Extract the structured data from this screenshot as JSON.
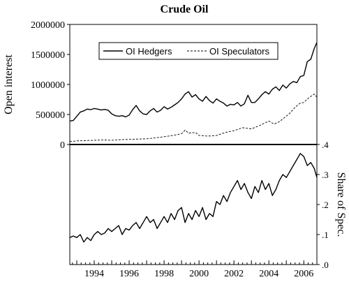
{
  "chart_data": {
    "type": "line",
    "title": "Crude Oil",
    "x_range": [
      1992.6,
      2006.75
    ],
    "x_ticks": [
      "1994",
      "1996",
      "1998",
      "2000",
      "2002",
      "2004",
      "2006"
    ],
    "top_panel": {
      "ylabel": "Open interest",
      "ylim": [
        0,
        2000000
      ],
      "y_ticks": [
        "0",
        "500000",
        "1000000",
        "1500000",
        "2000000"
      ],
      "legend_position": "top-center",
      "series": [
        {
          "name": "OI Hedgers",
          "style": "solid",
          "points": [
            [
              1992.6,
              390000
            ],
            [
              1992.8,
              400000
            ],
            [
              1993.0,
              470000
            ],
            [
              1993.2,
              540000
            ],
            [
              1993.4,
              560000
            ],
            [
              1993.6,
              590000
            ],
            [
              1993.8,
              580000
            ],
            [
              1994.0,
              600000
            ],
            [
              1994.2,
              590000
            ],
            [
              1994.4,
              575000
            ],
            [
              1994.6,
              585000
            ],
            [
              1994.8,
              570000
            ],
            [
              1995.0,
              510000
            ],
            [
              1995.2,
              480000
            ],
            [
              1995.4,
              470000
            ],
            [
              1995.6,
              480000
            ],
            [
              1995.8,
              460000
            ],
            [
              1996.0,
              490000
            ],
            [
              1996.2,
              580000
            ],
            [
              1996.4,
              650000
            ],
            [
              1996.6,
              560000
            ],
            [
              1996.8,
              510000
            ],
            [
              1997.0,
              500000
            ],
            [
              1997.2,
              560000
            ],
            [
              1997.4,
              600000
            ],
            [
              1997.6,
              540000
            ],
            [
              1997.8,
              570000
            ],
            [
              1998.0,
              630000
            ],
            [
              1998.2,
              590000
            ],
            [
              1998.4,
              620000
            ],
            [
              1998.6,
              660000
            ],
            [
              1998.8,
              700000
            ],
            [
              1999.0,
              760000
            ],
            [
              1999.2,
              840000
            ],
            [
              1999.4,
              880000
            ],
            [
              1999.6,
              790000
            ],
            [
              1999.8,
              830000
            ],
            [
              2000.0,
              760000
            ],
            [
              2000.2,
              720000
            ],
            [
              2000.4,
              800000
            ],
            [
              2000.6,
              730000
            ],
            [
              2000.8,
              690000
            ],
            [
              2001.0,
              760000
            ],
            [
              2001.2,
              720000
            ],
            [
              2001.4,
              690000
            ],
            [
              2001.6,
              640000
            ],
            [
              2001.8,
              670000
            ],
            [
              2002.0,
              660000
            ],
            [
              2002.2,
              700000
            ],
            [
              2002.4,
              640000
            ],
            [
              2002.6,
              680000
            ],
            [
              2002.8,
              820000
            ],
            [
              2003.0,
              700000
            ],
            [
              2003.2,
              700000
            ],
            [
              2003.4,
              760000
            ],
            [
              2003.6,
              830000
            ],
            [
              2003.8,
              880000
            ],
            [
              2004.0,
              840000
            ],
            [
              2004.2,
              920000
            ],
            [
              2004.4,
              960000
            ],
            [
              2004.6,
              900000
            ],
            [
              2004.8,
              990000
            ],
            [
              2005.0,
              940000
            ],
            [
              2005.2,
              1010000
            ],
            [
              2005.4,
              1050000
            ],
            [
              2005.6,
              1030000
            ],
            [
              2005.8,
              1130000
            ],
            [
              2006.0,
              1150000
            ],
            [
              2006.2,
              1380000
            ],
            [
              2006.4,
              1420000
            ],
            [
              2006.6,
              1600000
            ],
            [
              2006.75,
              1700000
            ]
          ]
        },
        {
          "name": "OI Speculators",
          "style": "dashed",
          "points": [
            [
              1992.6,
              50000
            ],
            [
              1993.0,
              60000
            ],
            [
              1993.5,
              65000
            ],
            [
              1994.0,
              70000
            ],
            [
              1994.5,
              75000
            ],
            [
              1995.0,
              70000
            ],
            [
              1995.5,
              80000
            ],
            [
              1996.0,
              85000
            ],
            [
              1996.5,
              90000
            ],
            [
              1997.0,
              95000
            ],
            [
              1997.5,
              110000
            ],
            [
              1998.0,
              130000
            ],
            [
              1998.5,
              150000
            ],
            [
              1999.0,
              180000
            ],
            [
              1999.2,
              240000
            ],
            [
              1999.4,
              190000
            ],
            [
              1999.8,
              200000
            ],
            [
              2000.0,
              150000
            ],
            [
              2000.5,
              140000
            ],
            [
              2001.0,
              150000
            ],
            [
              2001.5,
              200000
            ],
            [
              2002.0,
              230000
            ],
            [
              2002.5,
              280000
            ],
            [
              2003.0,
              260000
            ],
            [
              2003.5,
              320000
            ],
            [
              2004.0,
              390000
            ],
            [
              2004.3,
              340000
            ],
            [
              2004.6,
              380000
            ],
            [
              2004.9,
              450000
            ],
            [
              2005.2,
              520000
            ],
            [
              2005.5,
              620000
            ],
            [
              2005.8,
              690000
            ],
            [
              2006.0,
              700000
            ],
            [
              2006.3,
              780000
            ],
            [
              2006.6,
              840000
            ],
            [
              2006.75,
              790000
            ]
          ]
        }
      ]
    },
    "bottom_panel": {
      "ylabel": "Share of Spec.",
      "ylim": [
        0.0,
        0.4
      ],
      "y_ticks": [
        ".0",
        ".1",
        ".2",
        ".3",
        ".4"
      ],
      "series": [
        {
          "name": "Share of Spec.",
          "style": "solid",
          "points": [
            [
              1992.6,
              0.09
            ],
            [
              1992.8,
              0.095
            ],
            [
              1993.0,
              0.09
            ],
            [
              1993.2,
              0.1
            ],
            [
              1993.4,
              0.075
            ],
            [
              1993.6,
              0.09
            ],
            [
              1993.8,
              0.08
            ],
            [
              1994.0,
              0.1
            ],
            [
              1994.2,
              0.11
            ],
            [
              1994.4,
              0.1
            ],
            [
              1994.6,
              0.105
            ],
            [
              1994.8,
              0.12
            ],
            [
              1995.0,
              0.11
            ],
            [
              1995.2,
              0.12
            ],
            [
              1995.4,
              0.13
            ],
            [
              1995.6,
              0.1
            ],
            [
              1995.8,
              0.12
            ],
            [
              1996.0,
              0.115
            ],
            [
              1996.2,
              0.13
            ],
            [
              1996.4,
              0.14
            ],
            [
              1996.6,
              0.12
            ],
            [
              1996.8,
              0.14
            ],
            [
              1997.0,
              0.16
            ],
            [
              1997.2,
              0.14
            ],
            [
              1997.4,
              0.15
            ],
            [
              1997.6,
              0.12
            ],
            [
              1997.8,
              0.14
            ],
            [
              1998.0,
              0.16
            ],
            [
              1998.2,
              0.14
            ],
            [
              1998.4,
              0.17
            ],
            [
              1998.6,
              0.15
            ],
            [
              1998.8,
              0.18
            ],
            [
              1999.0,
              0.19
            ],
            [
              1999.2,
              0.14
            ],
            [
              1999.4,
              0.17
            ],
            [
              1999.6,
              0.15
            ],
            [
              1999.8,
              0.18
            ],
            [
              2000.0,
              0.16
            ],
            [
              2000.2,
              0.19
            ],
            [
              2000.4,
              0.15
            ],
            [
              2000.6,
              0.17
            ],
            [
              2000.8,
              0.16
            ],
            [
              2001.0,
              0.21
            ],
            [
              2001.2,
              0.2
            ],
            [
              2001.4,
              0.23
            ],
            [
              2001.6,
              0.21
            ],
            [
              2001.8,
              0.24
            ],
            [
              2002.0,
              0.26
            ],
            [
              2002.2,
              0.28
            ],
            [
              2002.4,
              0.25
            ],
            [
              2002.6,
              0.27
            ],
            [
              2002.8,
              0.24
            ],
            [
              2003.0,
              0.22
            ],
            [
              2003.2,
              0.26
            ],
            [
              2003.4,
              0.24
            ],
            [
              2003.6,
              0.28
            ],
            [
              2003.8,
              0.25
            ],
            [
              2004.0,
              0.27
            ],
            [
              2004.2,
              0.23
            ],
            [
              2004.4,
              0.25
            ],
            [
              2004.6,
              0.28
            ],
            [
              2004.8,
              0.3
            ],
            [
              2005.0,
              0.29
            ],
            [
              2005.2,
              0.31
            ],
            [
              2005.4,
              0.33
            ],
            [
              2005.6,
              0.35
            ],
            [
              2005.8,
              0.37
            ],
            [
              2006.0,
              0.36
            ],
            [
              2006.2,
              0.33
            ],
            [
              2006.4,
              0.34
            ],
            [
              2006.6,
              0.32
            ],
            [
              2006.75,
              0.29
            ]
          ]
        }
      ]
    }
  }
}
